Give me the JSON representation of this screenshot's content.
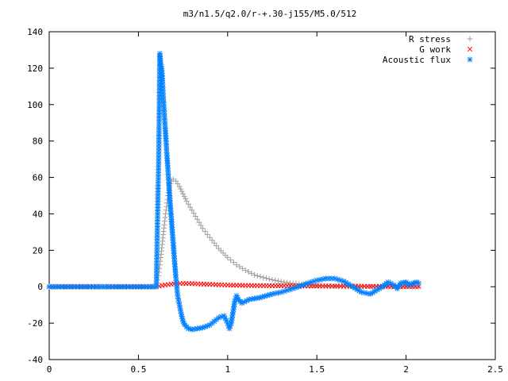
{
  "chart_data": {
    "type": "scatter",
    "title": "m3/n1.5/q2.0/r-+.30-j155/M5.0/512",
    "xlabel": "",
    "ylabel": "",
    "xlim": [
      0,
      2.5
    ],
    "ylim": [
      -40,
      140
    ],
    "x_ticks": [
      "0",
      "0.5",
      "1",
      "1.5",
      "2",
      "2.5"
    ],
    "y_ticks": [
      "-40",
      "-20",
      "0",
      "20",
      "40",
      "60",
      "80",
      "100",
      "120",
      "140"
    ],
    "grid": false,
    "legend_position": "top-right",
    "series": [
      {
        "name": "R stress",
        "marker": "plus",
        "color": "#a0a0a0",
        "points": [
          [
            0.0,
            0
          ],
          [
            0.3,
            0
          ],
          [
            0.6,
            0
          ],
          [
            0.615,
            8
          ],
          [
            0.625,
            16
          ],
          [
            0.635,
            25
          ],
          [
            0.645,
            34
          ],
          [
            0.655,
            42
          ],
          [
            0.665,
            50
          ],
          [
            0.675,
            55
          ],
          [
            0.685,
            58
          ],
          [
            0.695,
            59
          ],
          [
            0.71,
            58
          ],
          [
            0.73,
            55
          ],
          [
            0.75,
            51
          ],
          [
            0.77,
            47
          ],
          [
            0.8,
            42
          ],
          [
            0.83,
            37
          ],
          [
            0.86,
            32
          ],
          [
            0.9,
            27
          ],
          [
            0.95,
            21
          ],
          [
            1.0,
            16
          ],
          [
            1.05,
            12
          ],
          [
            1.1,
            9
          ],
          [
            1.15,
            6.5
          ],
          [
            1.2,
            5
          ],
          [
            1.25,
            3.8
          ],
          [
            1.3,
            2.8
          ],
          [
            1.35,
            2
          ],
          [
            1.4,
            1.5
          ],
          [
            1.45,
            1
          ],
          [
            1.5,
            0.6
          ],
          [
            1.6,
            0.3
          ],
          [
            1.7,
            0.1
          ],
          [
            1.8,
            0
          ],
          [
            1.9,
            0
          ],
          [
            2.0,
            0
          ],
          [
            2.07,
            0
          ]
        ]
      },
      {
        "name": "G work",
        "marker": "cross",
        "color": "#ff0000",
        "points": [
          [
            0.0,
            0
          ],
          [
            0.3,
            0
          ],
          [
            0.6,
            0
          ],
          [
            0.65,
            1
          ],
          [
            0.7,
            1.6
          ],
          [
            0.75,
            1.8
          ],
          [
            0.8,
            1.7
          ],
          [
            0.85,
            1.5
          ],
          [
            0.9,
            1.3
          ],
          [
            0.95,
            1.1
          ],
          [
            1.0,
            0.9
          ],
          [
            1.1,
            0.7
          ],
          [
            1.2,
            0.6
          ],
          [
            1.3,
            0.5
          ],
          [
            1.4,
            0.4
          ],
          [
            1.5,
            0.4
          ],
          [
            1.6,
            0.3
          ],
          [
            1.7,
            0.3
          ],
          [
            1.8,
            0.2
          ],
          [
            1.9,
            0.2
          ],
          [
            2.0,
            0.1
          ],
          [
            2.07,
            0.1
          ]
        ]
      },
      {
        "name": "Acoustic flux",
        "marker": "star",
        "color": "#0080ff",
        "points": [
          [
            0.0,
            0
          ],
          [
            0.1,
            0
          ],
          [
            0.2,
            0
          ],
          [
            0.3,
            0
          ],
          [
            0.4,
            0
          ],
          [
            0.5,
            0
          ],
          [
            0.6,
            0
          ],
          [
            0.614,
            73
          ],
          [
            0.618,
            110
          ],
          [
            0.62,
            128
          ],
          [
            0.623,
            124
          ],
          [
            0.626,
            122
          ],
          [
            0.63,
            120
          ],
          [
            0.635,
            113
          ],
          [
            0.64,
            103
          ],
          [
            0.645,
            95
          ],
          [
            0.65,
            87
          ],
          [
            0.655,
            80
          ],
          [
            0.66,
            72
          ],
          [
            0.665,
            65
          ],
          [
            0.67,
            57
          ],
          [
            0.675,
            50
          ],
          [
            0.68,
            43
          ],
          [
            0.685,
            37
          ],
          [
            0.69,
            30
          ],
          [
            0.695,
            24
          ],
          [
            0.7,
            17
          ],
          [
            0.705,
            11
          ],
          [
            0.71,
            5
          ],
          [
            0.715,
            0
          ],
          [
            0.72,
            -5
          ],
          [
            0.73,
            -10
          ],
          [
            0.74,
            -15
          ],
          [
            0.75,
            -19
          ],
          [
            0.76,
            -21
          ],
          [
            0.78,
            -23
          ],
          [
            0.8,
            -23.5
          ],
          [
            0.83,
            -23
          ],
          [
            0.86,
            -22.5
          ],
          [
            0.9,
            -21
          ],
          [
            0.95,
            -17
          ],
          [
            0.98,
            -16
          ],
          [
            1.0,
            -20
          ],
          [
            1.01,
            -23
          ],
          [
            1.02,
            -20
          ],
          [
            1.03,
            -14
          ],
          [
            1.04,
            -8
          ],
          [
            1.05,
            -5
          ],
          [
            1.06,
            -7
          ],
          [
            1.08,
            -9
          ],
          [
            1.12,
            -7
          ],
          [
            1.18,
            -6
          ],
          [
            1.25,
            -4
          ],
          [
            1.3,
            -3
          ],
          [
            1.35,
            -1.5
          ],
          [
            1.4,
            0
          ],
          [
            1.45,
            2
          ],
          [
            1.5,
            3.5
          ],
          [
            1.55,
            4.5
          ],
          [
            1.6,
            4.5
          ],
          [
            1.65,
            3
          ],
          [
            1.7,
            0
          ],
          [
            1.75,
            -3
          ],
          [
            1.8,
            -4
          ],
          [
            1.85,
            -1
          ],
          [
            1.88,
            1
          ],
          [
            1.9,
            2.5
          ],
          [
            1.93,
            1
          ],
          [
            1.95,
            -1
          ],
          [
            1.97,
            2
          ],
          [
            2.0,
            2.5
          ],
          [
            2.02,
            1
          ],
          [
            2.04,
            2
          ],
          [
            2.06,
            2.5
          ],
          [
            2.07,
            2
          ]
        ]
      }
    ]
  }
}
